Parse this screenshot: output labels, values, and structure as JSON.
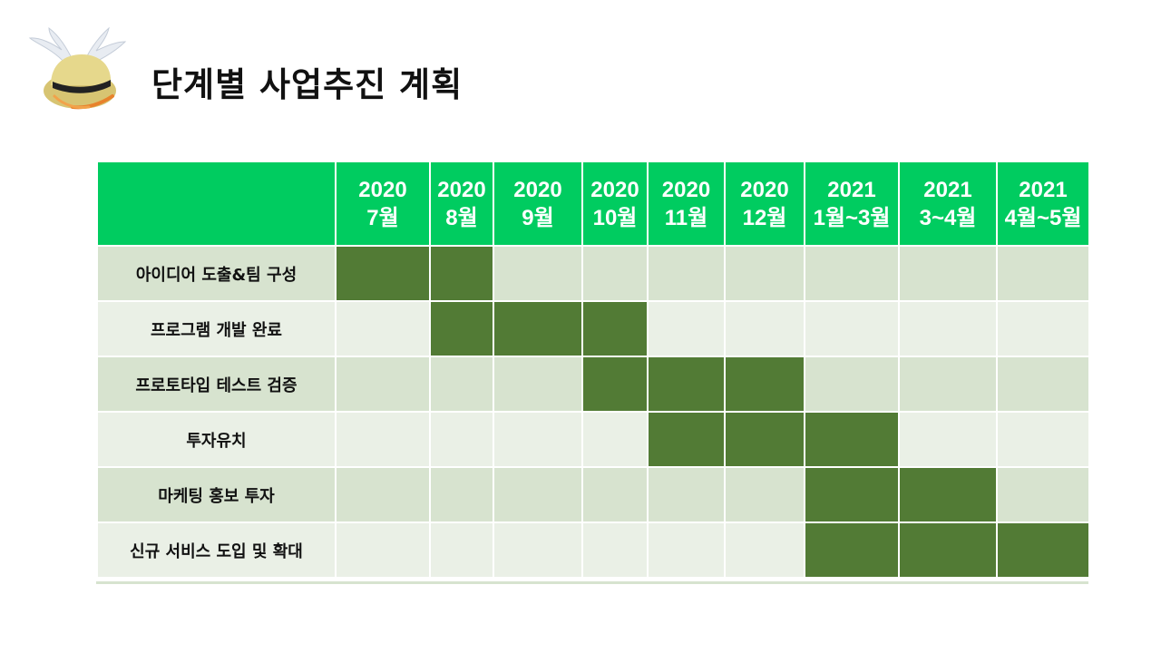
{
  "title": "단계별 사업추진 계획",
  "gantt": {
    "columns": [
      {
        "year": "2020",
        "month": "7월"
      },
      {
        "year": "2020",
        "month": "8월"
      },
      {
        "year": "2020",
        "month": "9월"
      },
      {
        "year": "2020",
        "month": "10월"
      },
      {
        "year": "2020",
        "month": "11월"
      },
      {
        "year": "2020",
        "month": "12월"
      },
      {
        "year": "2021",
        "month": "1월~3월"
      },
      {
        "year": "2021",
        "month": "3~4월"
      },
      {
        "year": "2021",
        "month": "4월~5월"
      }
    ],
    "tasks": [
      {
        "name": "아이디어 도출&팀 구성",
        "start": 0,
        "end": 1
      },
      {
        "name": "프로그램 개발 완료",
        "start": 1,
        "end": 3
      },
      {
        "name": "프로토타입 테스트 검증",
        "start": 3,
        "end": 5
      },
      {
        "name": "투자유치",
        "start": 4,
        "end": 6
      },
      {
        "name": "마케팅 홍보 투자",
        "start": 6,
        "end": 7
      },
      {
        "name": "신규 서비스 도입 및 확대",
        "start": 6,
        "end": 8
      }
    ]
  },
  "colors": {
    "header": "#00cc60",
    "bar": "#527b35",
    "row_odd": "#d7e3cf",
    "row_even": "#eaf0e6"
  },
  "logo_icon": "winged-hat-icon"
}
